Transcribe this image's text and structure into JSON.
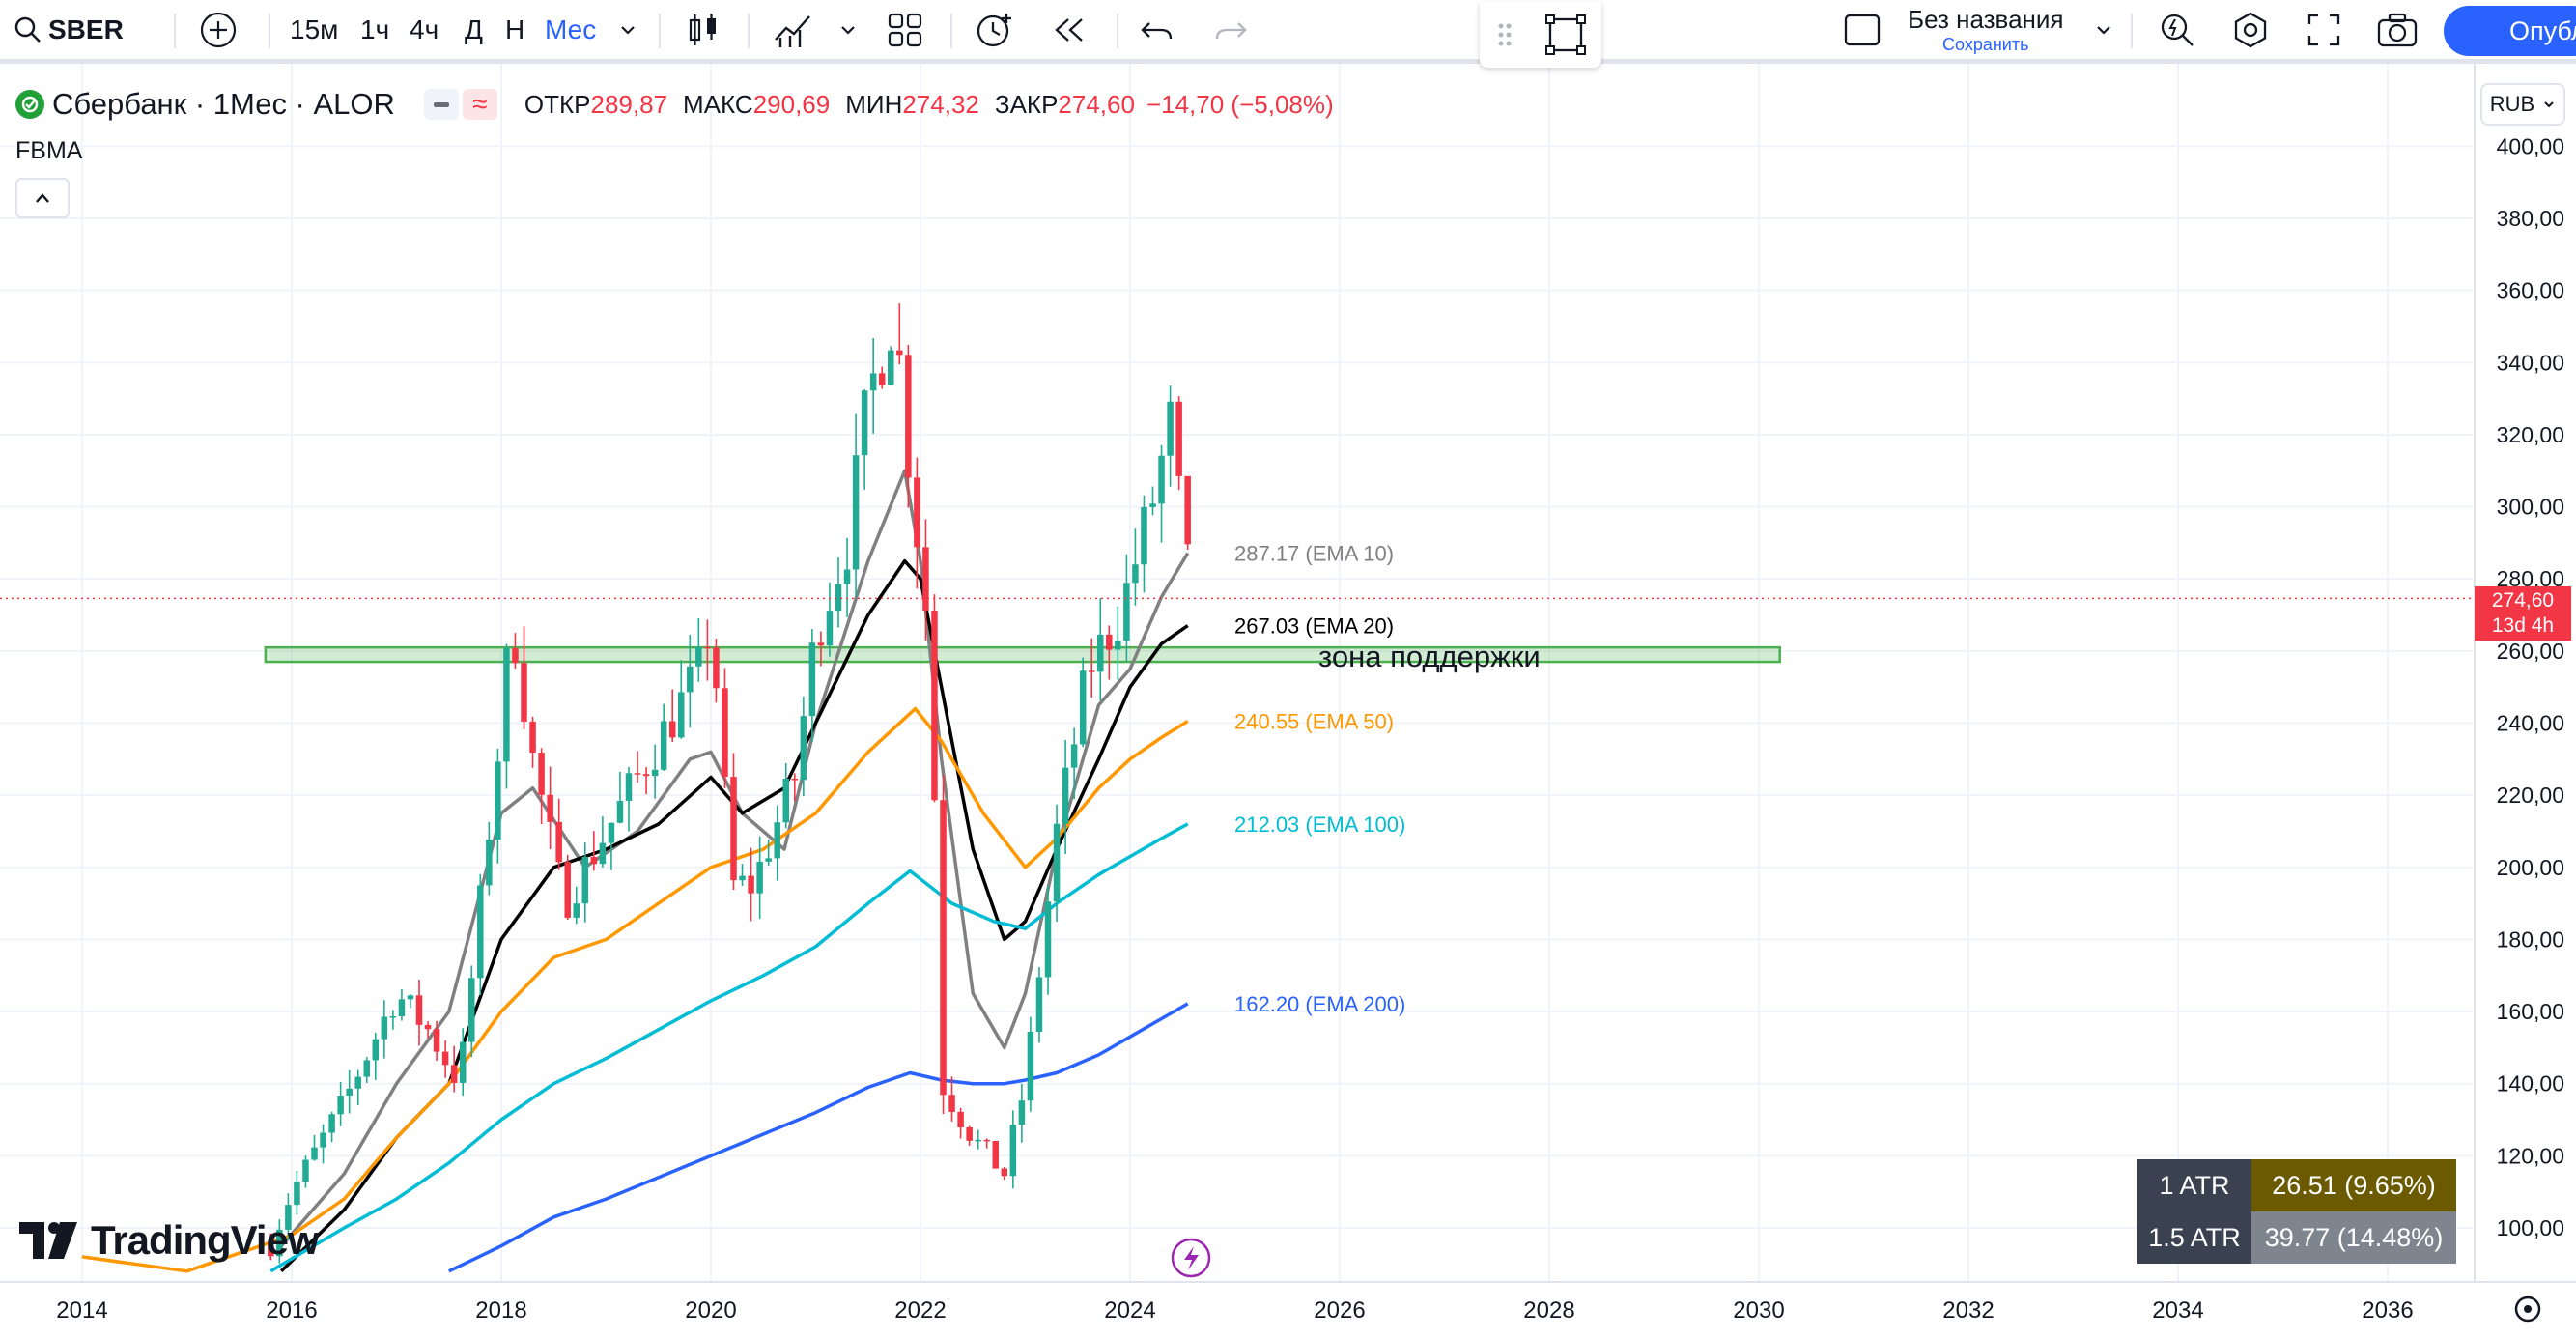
{
  "toolbar": {
    "symbol": "SBER",
    "intervals": [
      "15м",
      "1ч",
      "4ч",
      "Д",
      "Н",
      "Мес"
    ],
    "active_interval": "Мес",
    "layout_name": "Без названия",
    "save_label": "Сохранить",
    "publish_label": "Опублико"
  },
  "legend": {
    "instrument": "Сбербанк · 1Мес · ALOR",
    "open_label": "ОТКР",
    "open": "289,87",
    "high_label": "МАКС",
    "high": "290,69",
    "low_label": "МИН",
    "low": "274,32",
    "close_label": "ЗАКР",
    "close": "274,60",
    "change": "−14,70 (−5,08%)",
    "indicator": "FBMA"
  },
  "currency": "RUB",
  "price_tag": {
    "price": "274,60",
    "countdown": "13d 4h"
  },
  "atr": [
    {
      "label": "1 ATR",
      "value": "26.51 (9.65%)",
      "bg": "#6b5a00"
    },
    {
      "label": "1.5 ATR",
      "value": "39.77 (14.48%)",
      "bg": "#7f858f"
    }
  ],
  "watermark": "TradingView",
  "colors": {
    "up": "#22ab94",
    "down": "#f23645",
    "ema10": "#808080",
    "ema20": "#000000",
    "ema50": "#ff9800",
    "ema100": "#00bcd4",
    "ema200": "#2962ff",
    "zone": "#4caf50",
    "accent": "#2962ff"
  },
  "chart_data": {
    "type": "candlestick",
    "y_axis_ticks": [
      "100,00",
      "120,00",
      "140,00",
      "160,00",
      "180,00",
      "200,00",
      "220,00",
      "240,00",
      "260,00",
      "280,00",
      "300,00",
      "320,00",
      "340,00",
      "360,00",
      "380,00",
      "400,00"
    ],
    "ylim": [
      88,
      405
    ],
    "x_axis_ticks": [
      "2014",
      "2016",
      "2018",
      "2020",
      "2022",
      "2024",
      "2026",
      "2028",
      "2030",
      "2032",
      "2034",
      "2036"
    ],
    "xlim": [
      2013.25,
      2036.9
    ],
    "last_price": 274.6,
    "support_zone": {
      "low": 257,
      "high": 261,
      "label": "зона поддержки",
      "x_start": 2015.75,
      "x_end": 2030.2
    },
    "ema_labels": [
      {
        "text": "287.17 (EMA 10)",
        "value": 287.17,
        "color": "#808080"
      },
      {
        "text": "267.03 (EMA 20)",
        "value": 267.03,
        "color": "#000000"
      },
      {
        "text": "240.55 (EMA 50)",
        "value": 240.55,
        "color": "#ff9800"
      },
      {
        "text": "212.03 (EMA 100)",
        "value": 212.03,
        "color": "#00bcd4"
      },
      {
        "text": "162.20 (EMA 200)",
        "value": 162.2,
        "color": "#2962ff"
      }
    ],
    "close_series": {
      "x": [
        2015.8,
        2016.0,
        2016.5,
        2017.0,
        2017.3,
        2017.6,
        2018.0,
        2018.1,
        2018.3,
        2018.6,
        2019.0,
        2019.5,
        2019.9,
        2020.0,
        2020.2,
        2020.4,
        2020.8,
        2021.0,
        2021.3,
        2021.5,
        2021.75,
        2021.9,
        2022.0,
        2022.1,
        2022.2,
        2022.5,
        2022.8,
        2023.0,
        2023.3,
        2023.6,
        2023.9,
        2024.2,
        2024.4,
        2024.5,
        2024.6
      ],
      "close": [
        95,
        110,
        135,
        165,
        155,
        140,
        240,
        270,
        230,
        190,
        210,
        235,
        255,
        270,
        195,
        195,
        225,
        265,
        290,
        330,
        355,
        310,
        285,
        260,
        140,
        125,
        115,
        140,
        210,
        255,
        270,
        300,
        325,
        290,
        275
      ]
    },
    "ema_lines": {
      "ema10": {
        "x": [
          2015.9,
          2016.5,
          2017.0,
          2017.5,
          2018.0,
          2018.3,
          2018.8,
          2019.3,
          2019.8,
          2020.0,
          2020.3,
          2020.7,
          2021.0,
          2021.5,
          2021.85,
          2022.0,
          2022.2,
          2022.5,
          2022.8,
          2023.0,
          2023.3,
          2023.7,
          2024.0,
          2024.3,
          2024.55
        ],
        "y": [
          95,
          115,
          140,
          160,
          215,
          222,
          200,
          210,
          230,
          232,
          215,
          205,
          240,
          285,
          310,
          285,
          230,
          165,
          150,
          165,
          205,
          245,
          255,
          275,
          287.17
        ]
      },
      "ema20": {
        "x": [
          2015.9,
          2016.5,
          2017.0,
          2017.5,
          2018.0,
          2018.5,
          2019.0,
          2019.5,
          2020.0,
          2020.3,
          2020.7,
          2021.0,
          2021.5,
          2021.85,
          2022.0,
          2022.2,
          2022.5,
          2022.8,
          2023.0,
          2023.3,
          2023.7,
          2024.0,
          2024.3,
          2024.55
        ],
        "y": [
          88,
          105,
          125,
          140,
          180,
          200,
          205,
          212,
          225,
          215,
          222,
          240,
          270,
          285,
          280,
          250,
          205,
          180,
          185,
          205,
          230,
          250,
          262,
          267.03
        ]
      },
      "ema50": {
        "x": [
          2014.0,
          2015.0,
          2016.0,
          2016.5,
          2017.0,
          2017.5,
          2018.0,
          2018.5,
          2019.0,
          2019.5,
          2020.0,
          2020.5,
          2021.0,
          2021.5,
          2021.95,
          2022.2,
          2022.6,
          2023.0,
          2023.3,
          2023.7,
          2024.0,
          2024.3,
          2024.55
        ],
        "y": [
          92,
          88,
          98,
          108,
          125,
          140,
          160,
          175,
          180,
          190,
          200,
          205,
          215,
          232,
          244,
          235,
          215,
          200,
          208,
          222,
          230,
          236,
          240.55
        ]
      },
      "ema100": {
        "x": [
          2015.8,
          2016.5,
          2017.0,
          2017.5,
          2018.0,
          2018.5,
          2019.0,
          2019.5,
          2020.0,
          2020.5,
          2021.0,
          2021.5,
          2021.9,
          2022.3,
          2022.7,
          2023.0,
          2023.3,
          2023.7,
          2024.0,
          2024.3,
          2024.55
        ],
        "y": [
          88,
          100,
          108,
          118,
          130,
          140,
          147,
          155,
          163,
          170,
          178,
          190,
          199,
          190,
          185,
          183,
          190,
          198,
          203,
          208,
          212.03
        ]
      },
      "ema200": {
        "x": [
          2017.5,
          2018.0,
          2018.5,
          2019.0,
          2019.5,
          2020.0,
          2020.5,
          2021.0,
          2021.5,
          2021.9,
          2022.2,
          2022.5,
          2022.8,
          2023.0,
          2023.3,
          2023.7,
          2024.0,
          2024.3,
          2024.55
        ],
        "y": [
          88,
          95,
          103,
          108,
          114,
          120,
          126,
          132,
          139,
          143,
          141,
          140,
          140,
          141,
          143,
          148,
          153,
          158,
          162.2
        ]
      }
    }
  }
}
